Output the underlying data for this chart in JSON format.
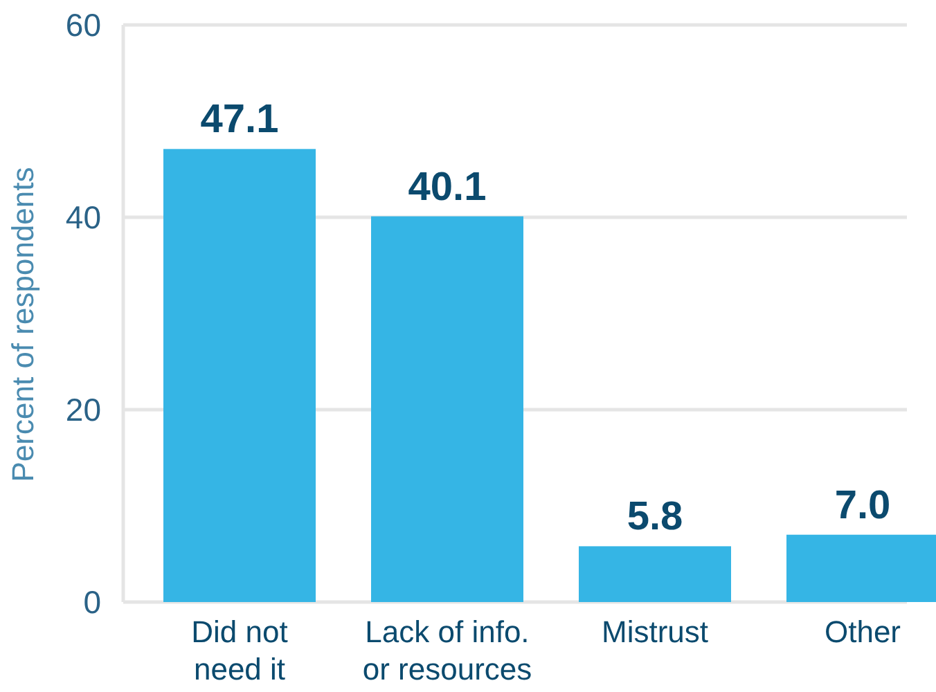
{
  "chart_data": {
    "type": "bar",
    "ylabel": "Percent of respondents",
    "categories": [
      "Did not\nneed it",
      "Lack of info.\nor resources",
      "Mistrust",
      "Other"
    ],
    "values": [
      47.1,
      40.1,
      5.8,
      7.0
    ],
    "value_labels": [
      "47.1",
      "40.1",
      "5.8",
      "7.0"
    ],
    "color": "#35b5e5",
    "ylim": [
      0,
      60
    ],
    "yticks": [
      0,
      20,
      40,
      60
    ],
    "grid": "y"
  }
}
